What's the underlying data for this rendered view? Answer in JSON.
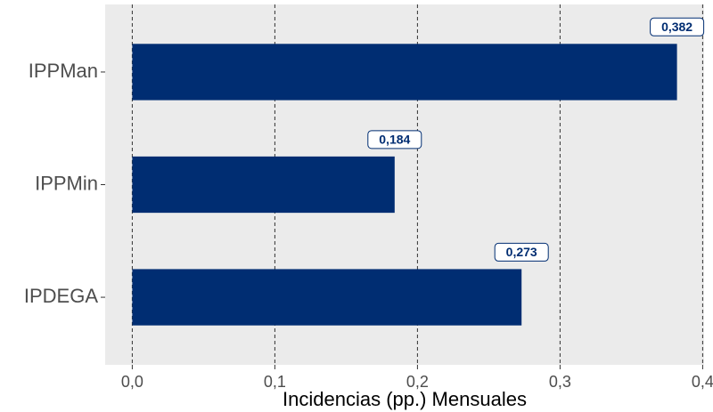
{
  "chart_data": {
    "type": "barh",
    "xlabel": "Incidencias (pp.) Mensuales",
    "categories": [
      "IPPMan",
      "IPPMin",
      "IPDEGA"
    ],
    "values": [
      0.382,
      0.184,
      0.273
    ],
    "value_labels": [
      "0,382",
      "0,184",
      "0,273"
    ],
    "color": "#002d72",
    "xlim": [
      -0.019,
      0.401
    ],
    "xticks": [
      {
        "value": 0,
        "label": "0,0"
      },
      {
        "value": 0.1,
        "label": "0,1"
      },
      {
        "value": 0.2,
        "label": "0,2"
      },
      {
        "value": 0.3,
        "label": "0,3"
      },
      {
        "value": 0.4,
        "label": "0,4"
      }
    ],
    "grid": true
  }
}
